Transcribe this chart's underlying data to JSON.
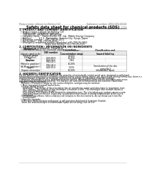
{
  "title": "Safety data sheet for chemical products (SDS)",
  "header_left": "Product name: Lithium Ion Battery Cell",
  "header_right": "Substance number: 0804-049-00018\nEstablishment / Revision: Dec.1 2019",
  "section1_title": "1. PRODUCT AND COMPANY IDENTIFICATION",
  "section1_lines": [
    "  • Product name: Lithium Ion Battery Cell",
    "  • Product code: Cylindrical-type cell",
    "      (UR18650U, UR18650U, UR18650A)",
    "  • Company name:   Sanyo Electric Co., Ltd., Mobile Energy Company",
    "  • Address:          2-1-1  Kannondori, Sumoto-City, Hyogo, Japan",
    "  • Telephone number:   +81-799-26-4111",
    "  • Fax number:   +81-799-26-4121",
    "  • Emergency telephone number (Weekday) +81-799-26-2662",
    "                                    (Night and holiday) +81-799-26-2121"
  ],
  "section2_title": "2. COMPOSITION / INFORMATION ON INGREDIENTS",
  "section2_lines": [
    "  • Substance or preparation: Preparation",
    "  • Information about the chemical nature of product:"
  ],
  "table_headers": [
    "Component\n\nSeveral name",
    "CAS number",
    "Concentration /\nConcentration range",
    "Classification and\nhazard labeling"
  ],
  "table_rows": [
    [
      "Lithium cobalt oxide\n(LiMnCoO(x))",
      "",
      "30-60%",
      ""
    ],
    [
      "Iron",
      "7439-89-6",
      "15-25%",
      "-"
    ],
    [
      "Aluminum",
      "7429-90-5",
      "2-8%",
      "-"
    ],
    [
      "Graphite\n(Metal in graphite+)\n(Al-Mo in graphite+)",
      "7782-42-5\n7782-44-2",
      "10-20%",
      ""
    ],
    [
      "Copper",
      "7440-50-8",
      "5-15%",
      "Sensitization of the skin\ngroup No.2"
    ],
    [
      "Organic electrolyte",
      "",
      "10-20%",
      "Inflammable liquid"
    ]
  ],
  "section3_title": "3. HAZARDS IDENTIFICATION",
  "section3_lines": [
    "For the battery cell, chemical materials are stored in a hermetically sealed metal case, designed to withstand",
    "temperatures and pressure-electronics-oriented safety circuit during normal use. As a result, during normal use, there is no",
    "physical danger of ignition or explosion and there is no danger of hazardous materials leakage.",
    "   However, if exposed to a fire, added mechanical shocks, decomposed, when electro stimulates may occur.",
    "The gas release cannot be operated. The battery cell case will be breached at the extreme. Hazardous",
    "materials may be released.",
    "   Moreover, if heated strongly by the surrounding fire, acid gas may be emitted."
  ],
  "bullet_effects": "  • Most important hazard and effects:",
  "effects_lines": [
    "    Human health effects:",
    "      Inhalation: The release of the electrolyte has an anesthesia action and stimulates in respiratory tract.",
    "      Skin contact: The release of the electrolyte stimulates a skin. The electrolyte skin contact causes a",
    "      sore and stimulation on the skin.",
    "      Eye contact: The release of the electrolyte stimulates eyes. The electrolyte eye contact causes a sore",
    "      and stimulation on the eye. Especially, a substance that causes a strong inflammation of the eye is",
    "      contained.",
    "    Environmental effects: Since a battery cell remains in the environment, do not throw out it into the",
    "      environment."
  ],
  "specific_hazards": "  • Specific hazards:",
  "specific_lines": [
    "    If the electrolyte contacts with water, it will generate detrimental hydrogen fluoride.",
    "    Since the seal electrolyte is inflammable liquid, do not bring close to fire."
  ],
  "bg_color": "#ffffff",
  "text_color": "#000000",
  "header_text_color": "#666666",
  "table_line_color": "#999999",
  "divider_color": "#aaaaaa"
}
